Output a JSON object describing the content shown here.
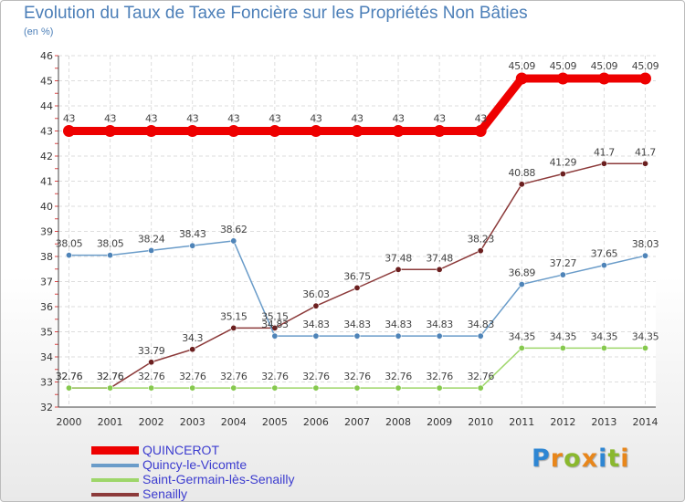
{
  "title": "Evolution du Taux de Taxe Foncière sur les Propriétés Non Bâties",
  "subtitle": "(en %)",
  "logo": {
    "text": "Proxiti",
    "letter_colors": [
      "#2e86d3",
      "#e8861a",
      "#8ab82e",
      "#e8861a",
      "#2e86d3",
      "#8ab82e",
      "#e8861a"
    ]
  },
  "chart_data": {
    "type": "line",
    "title": "Evolution du Taux de Taxe Foncière sur les Propriétés Non Bâties",
    "ylabel": "(en %)",
    "xlabel": "",
    "ylim": [
      32,
      46
    ],
    "yticks": [
      32,
      33,
      34,
      35,
      36,
      37,
      38,
      39,
      40,
      41,
      42,
      43,
      44,
      45,
      46
    ],
    "grid": true,
    "categories": [
      "2000",
      "2001",
      "2002",
      "2003",
      "2004",
      "2005",
      "2006",
      "2007",
      "2008",
      "2009",
      "2010",
      "2011",
      "2012",
      "2013",
      "2014"
    ],
    "series": [
      {
        "name": "QUINCEROT",
        "color": "#ee0000",
        "marker_color": "#ee0000",
        "thick": true,
        "values": [
          43,
          43,
          43,
          43,
          43,
          43,
          43,
          43,
          43,
          43,
          43,
          45.09,
          45.09,
          45.09,
          45.09
        ],
        "labels": [
          "43",
          "43",
          "43",
          "43",
          "43",
          "43",
          "43",
          "43",
          "43",
          "43",
          "43",
          "45.09",
          "45.09",
          "45.09",
          "45.09"
        ]
      },
      {
        "name": "Quincy-le-Vicomte",
        "color": "#6a9cc9",
        "marker_color": "#4f84b8",
        "thick": false,
        "values": [
          38.05,
          38.05,
          38.24,
          38.43,
          38.62,
          34.83,
          34.83,
          34.83,
          34.83,
          34.83,
          34.83,
          36.89,
          37.27,
          37.65,
          38.03
        ],
        "labels": [
          "38.05",
          "38.05",
          "38.24",
          "38.43",
          "38.62",
          "34.83",
          "34.83",
          "34.83",
          "34.83",
          "34.83",
          "34.83",
          "36.89",
          "37.27",
          "37.65",
          "38.03"
        ]
      },
      {
        "name": "Saint-Germain-lès-Senailly",
        "color": "#9ed66a",
        "marker_color": "#86c94e",
        "thick": false,
        "values": [
          32.76,
          32.76,
          32.76,
          32.76,
          32.76,
          32.76,
          32.76,
          32.76,
          32.76,
          32.76,
          32.76,
          34.35,
          34.35,
          34.35,
          34.35
        ],
        "labels": [
          "32.76",
          "32.76",
          "32.76",
          "32.76",
          "32.76",
          "32.76",
          "32.76",
          "32.76",
          "32.76",
          "32.76",
          "32.76",
          "34.35",
          "34.35",
          "34.35",
          "34.35"
        ]
      },
      {
        "name": "Senailly",
        "color": "#8c3a3a",
        "marker_color": "#6b1f1f",
        "thick": false,
        "values": [
          32.76,
          32.76,
          33.79,
          34.3,
          35.15,
          35.15,
          36.03,
          36.75,
          37.48,
          37.48,
          38.23,
          40.88,
          41.29,
          41.7,
          41.7
        ],
        "labels": [
          "32.76",
          "32.76",
          "33.79",
          "34.3",
          "35.15",
          "35.15",
          "36.03",
          "36.75",
          "37.48",
          "37.48",
          "38.23",
          "40.88",
          "41.29",
          "41.7",
          "41.7"
        ]
      }
    ]
  }
}
